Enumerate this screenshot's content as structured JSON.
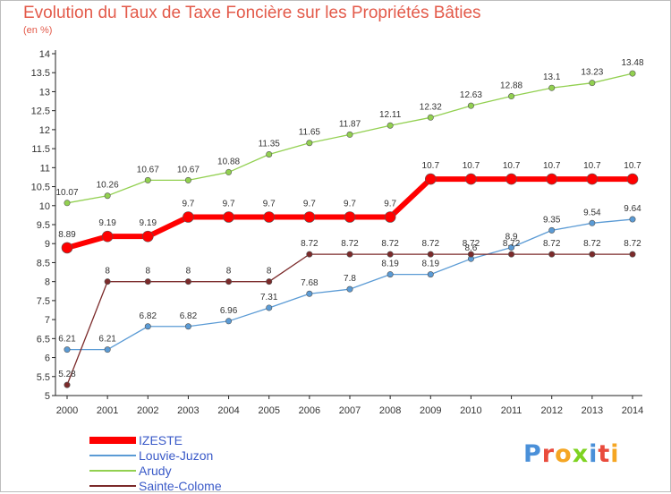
{
  "chart_data": {
    "type": "line",
    "title": "Evolution du Taux de Taxe Foncière sur les Propriétés Bâties",
    "unit_label": "(en %)",
    "x": [
      "2000",
      "2001",
      "2002",
      "2003",
      "2004",
      "2005",
      "2006",
      "2007",
      "2008",
      "2009",
      "2010",
      "2011",
      "2012",
      "2013",
      "2014"
    ],
    "ylim": [
      5,
      14
    ],
    "yticks": [
      "5",
      "5.5",
      "6",
      "6.5",
      "7",
      "7.5",
      "8",
      "8.5",
      "9",
      "9.5",
      "10",
      "10.5",
      "11",
      "11.5",
      "12",
      "12.5",
      "13",
      "13.5",
      "14"
    ],
    "series": [
      {
        "name": "IZESTE",
        "color": "#ff0000",
        "values": [
          8.89,
          9.19,
          9.19,
          9.7,
          9.7,
          9.7,
          9.7,
          9.7,
          9.7,
          10.7,
          10.7,
          10.7,
          10.7,
          10.7,
          10.7
        ],
        "labels": [
          "8.89",
          "9.19",
          "9.19",
          "9.7",
          "9.7",
          "9.7",
          "9.7",
          "9.7",
          "9.7",
          "10.7",
          "10.7",
          "10.7",
          "10.7",
          "10.7",
          "10.7"
        ]
      },
      {
        "name": "Louvie-Juzon",
        "color": "#5b9bd5",
        "values": [
          6.21,
          6.21,
          6.82,
          6.82,
          6.96,
          7.31,
          7.68,
          7.8,
          8.19,
          8.19,
          8.6,
          8.9,
          9.35,
          9.54,
          9.64
        ],
        "labels": [
          "6.21",
          "6.21",
          "6.82",
          "6.82",
          "6.96",
          "7.31",
          "7.68",
          "7.8",
          "8.19",
          "8.19",
          "8.6",
          "8.9",
          "9.35",
          "9.54",
          "9.64"
        ]
      },
      {
        "name": "Arudy",
        "color": "#92d050",
        "values": [
          10.07,
          10.26,
          10.67,
          10.67,
          10.88,
          11.35,
          11.65,
          11.87,
          12.11,
          12.32,
          12.63,
          12.88,
          13.1,
          13.23,
          13.48
        ],
        "labels": [
          "10.07",
          "10.26",
          "10.67",
          "10.67",
          "10.88",
          "11.35",
          "11.65",
          "11.87",
          "12.11",
          "12.32",
          "12.63",
          "12.88",
          "13.1",
          "13.23",
          "13.48"
        ]
      },
      {
        "name": "Sainte-Colome",
        "color": "#7b2a2a",
        "values": [
          5.28,
          8,
          8,
          8,
          8,
          8,
          8.72,
          8.72,
          8.72,
          8.72,
          8.72,
          8.72,
          8.72,
          8.72,
          8.72
        ],
        "labels": [
          "5.28",
          "8",
          "8",
          "8",
          "8",
          "8",
          "8.72",
          "8.72",
          "8.72",
          "8.72",
          "8.72",
          "8.72",
          "8.72",
          "8.72",
          "8.72"
        ]
      }
    ],
    "legend": [
      "IZESTE",
      "Louvie-Juzon",
      "Arudy",
      "Sainte-Colome"
    ],
    "legend_position": "bottom-left",
    "grid": false
  },
  "logo": {
    "letters": [
      "P",
      "r",
      "o",
      "x",
      "i",
      "t",
      "i"
    ],
    "colors": [
      "#4a90d9",
      "#e94b3c",
      "#f5a623",
      "#7ed321",
      "#4a90d9",
      "#e94b3c",
      "#f5a623"
    ]
  }
}
